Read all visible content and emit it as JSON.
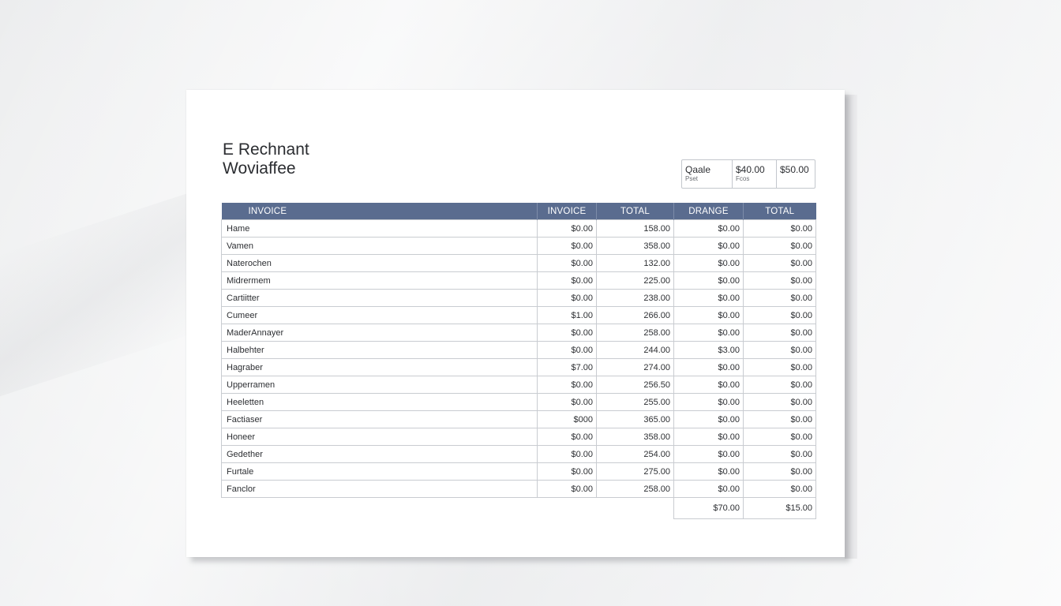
{
  "document": {
    "title_line1": "E Rechnant",
    "title_line2": "Woviaffee"
  },
  "summary": {
    "cells": [
      {
        "value": "Qaale",
        "sub": "Pset"
      },
      {
        "value": "$40.00",
        "sub": "Fcos"
      },
      {
        "value": "$50.00",
        "sub": ""
      }
    ]
  },
  "table": {
    "headers": [
      "INVOICE",
      "INVOICE",
      "TOTAL",
      "DRANGE",
      "TOTAL"
    ],
    "rows": [
      [
        "Hame",
        "$0.00",
        "158.00",
        "$0.00",
        "$0.00"
      ],
      [
        "Vamen",
        "$0.00",
        "358.00",
        "$0.00",
        "$0.00"
      ],
      [
        "Naterochen",
        "$0.00",
        "132.00",
        "$0.00",
        "$0.00"
      ],
      [
        "Midrermem",
        "$0.00",
        "225.00",
        "$0.00",
        "$0.00"
      ],
      [
        "Cartiitter",
        "$0.00",
        "238.00",
        "$0.00",
        "$0.00"
      ],
      [
        "Cumeer",
        "$1.00",
        "266.00",
        "$0.00",
        "$0.00"
      ],
      [
        "MaderAnnayer",
        "$0.00",
        "258.00",
        "$0.00",
        "$0.00"
      ],
      [
        "Halbehter",
        "$0.00",
        "244.00",
        "$3.00",
        "$0.00"
      ],
      [
        "Hagraber",
        "$7.00",
        "274.00",
        "$0.00",
        "$0.00"
      ],
      [
        "Upperramen",
        "$0.00",
        "256.50",
        "$0.00",
        "$0.00"
      ],
      [
        "Heeletten",
        "$0.00",
        "255.00",
        "$0.00",
        "$0.00"
      ],
      [
        "Factiaser",
        "$000",
        "365.00",
        "$0.00",
        "$0.00"
      ],
      [
        "Honeer",
        "$0.00",
        "358.00",
        "$0.00",
        "$0.00"
      ],
      [
        "Gedether",
        "$0.00",
        "254.00",
        "$0.00",
        "$0.00"
      ],
      [
        "Furtale",
        "$0.00",
        "275.00",
        "$0.00",
        "$0.00"
      ],
      [
        "Fanclor",
        "$0.00",
        "258.00",
        "$0.00",
        "$0.00"
      ]
    ],
    "totals": [
      "$70.00",
      "$15.00"
    ]
  },
  "colors": {
    "header_bg": "#5a6c8f",
    "border": "#c9ccd1"
  }
}
